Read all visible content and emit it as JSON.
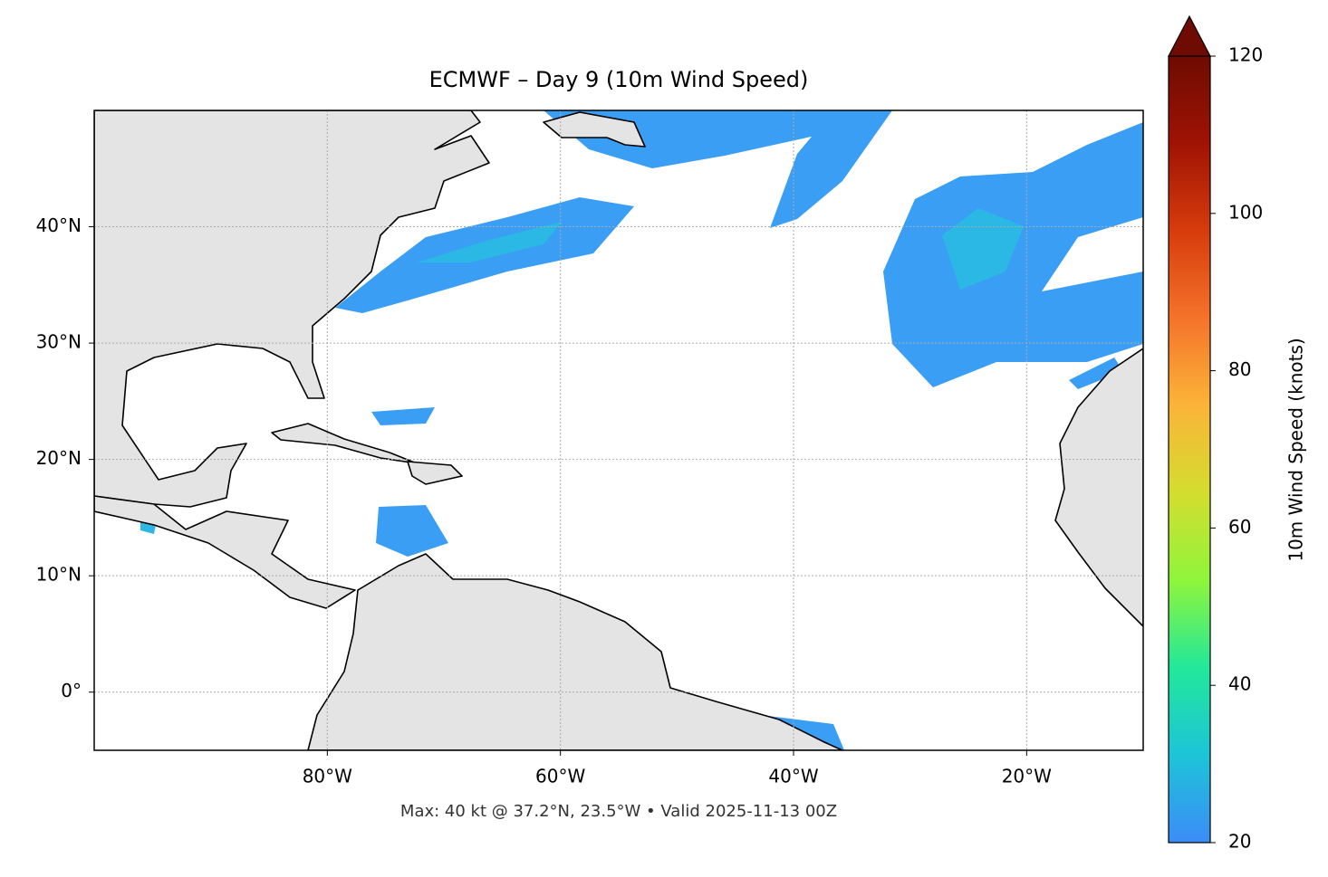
{
  "chart_data": {
    "type": "map",
    "title": "ECMWF – Day 9 (10m Wind Speed)",
    "footnote": "Max: 40 kt @ 37.2°N, 23.5°W • Valid 2025-11-13 00Z",
    "xlim": [
      -100,
      -10
    ],
    "ylim": [
      -5,
      50
    ],
    "xticks": [
      {
        "value": -80,
        "label": "80°W"
      },
      {
        "value": -60,
        "label": "60°W"
      },
      {
        "value": -40,
        "label": "40°W"
      },
      {
        "value": -20,
        "label": "20°W"
      }
    ],
    "yticks": [
      {
        "value": 0,
        "label": "0°"
      },
      {
        "value": 10,
        "label": "10°N"
      },
      {
        "value": 20,
        "label": "20°N"
      },
      {
        "value": 30,
        "label": "30°N"
      },
      {
        "value": 40,
        "label": "40°N"
      }
    ],
    "grid": true,
    "colorbar": {
      "label": "10m Wind Speed (knots)",
      "lim": [
        20,
        120
      ],
      "ticks": [
        20,
        40,
        60,
        80,
        100,
        120
      ],
      "colors": [
        "#3c8cf7",
        "#1dc4d8",
        "#22e89a",
        "#8ff53c",
        "#d4dd2f",
        "#fbb438",
        "#f5732a",
        "#d63c0c",
        "#a01304",
        "#6e0b02"
      ]
    }
  }
}
